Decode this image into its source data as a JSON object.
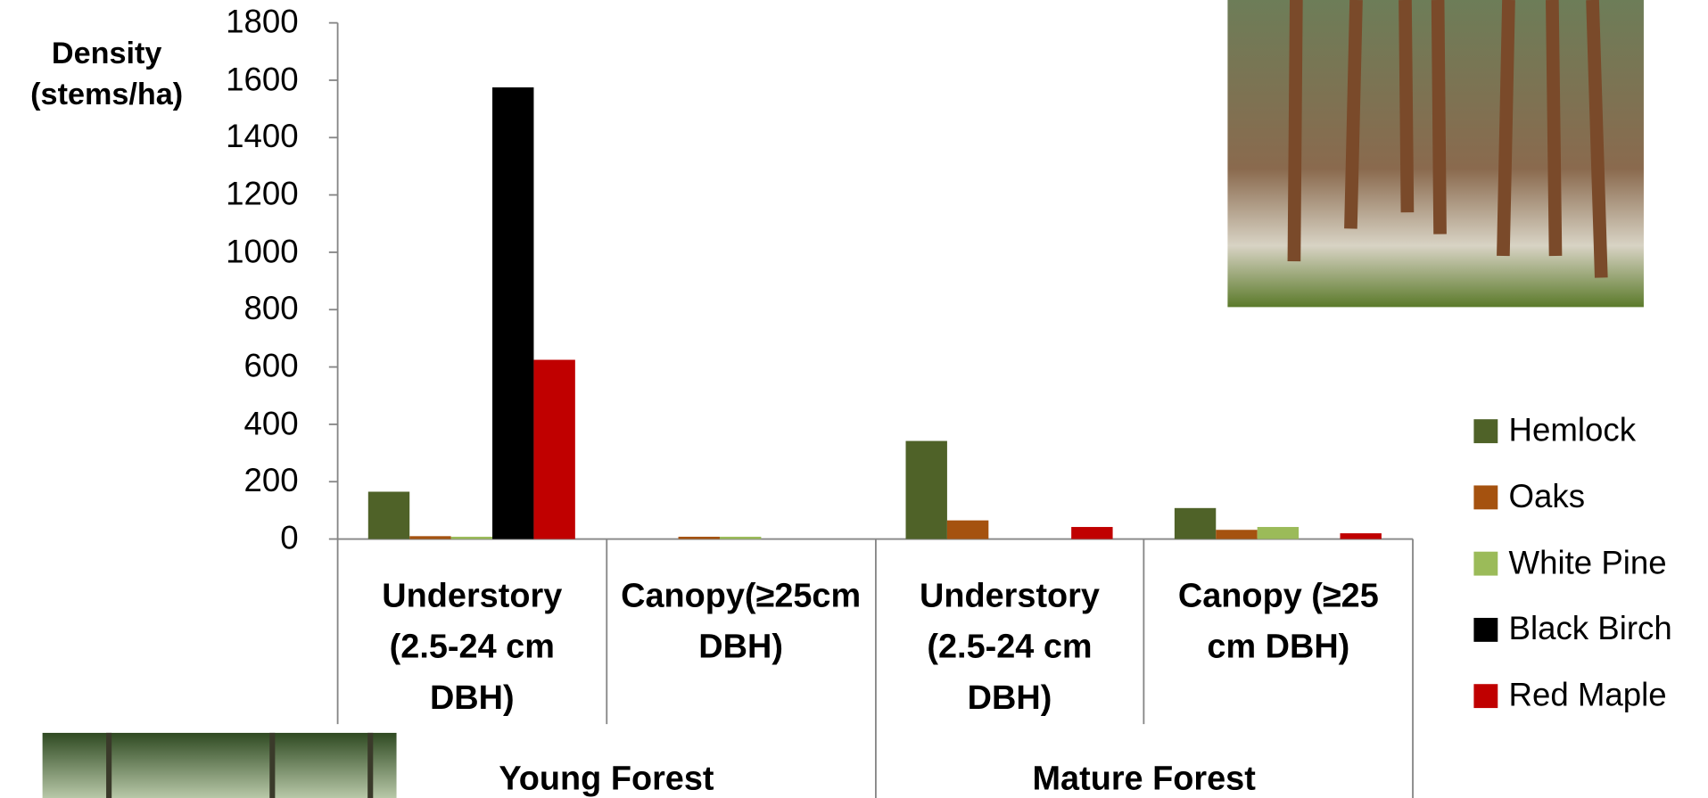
{
  "chart_data": {
    "type": "bar",
    "ylabel": [
      "Density",
      "(stems/ha)"
    ],
    "categories": [
      "Understory (2.5-24 cm DBH)",
      "Canopy(≥25cm DBH)",
      "Understory (2.5-24 cm DBH)",
      "Canopy (≥25 cm DBH)"
    ],
    "groups": [
      "Young Forest",
      "Mature Forest"
    ],
    "series": [
      {
        "name": "Hemlock",
        "color": "#4f6228",
        "values": [
          165,
          0,
          342,
          108
        ]
      },
      {
        "name": "Oaks",
        "color": "#a5520f",
        "values": [
          10,
          8,
          65,
          32
        ]
      },
      {
        "name": "White Pine",
        "color": "#9bbb59",
        "values": [
          8,
          8,
          0,
          42
        ]
      },
      {
        "name": "Black Birch",
        "color": "#000000",
        "values": [
          1575,
          0,
          0,
          0
        ]
      },
      {
        "name": "Red Maple",
        "color": "#c00000",
        "values": [
          625,
          0,
          42,
          20
        ]
      }
    ],
    "ylim": [
      0,
      1800
    ],
    "yticks": [
      0,
      200,
      400,
      600,
      800,
      1000,
      1200,
      1400,
      1600,
      1800
    ],
    "grid": false,
    "legend": "right"
  }
}
